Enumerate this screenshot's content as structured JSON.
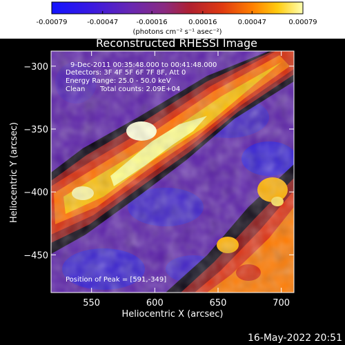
{
  "colorbar": {
    "ticks": [
      "-0.00079",
      "-0.00047",
      "-0.00016",
      "0.00016",
      "0.00047",
      "0.00079"
    ],
    "tick_values": [
      -0.00079,
      -0.00047,
      -0.00016,
      0.00016,
      0.00047,
      0.00079
    ],
    "unit_label": "(photons cm⁻² s⁻¹ asec⁻²)",
    "colors": [
      "#1414ff",
      "#5020c8",
      "#7a2ea0",
      "#a02040",
      "#e03010",
      "#ff7a00",
      "#ffcc00",
      "#ffff99"
    ]
  },
  "chart_data": {
    "type": "heatmap",
    "title": "Reconstructed RHESSI Image",
    "xlabel": "Heliocentric X (arcsec)",
    "ylabel": "Heliocentric Y (arcsec)",
    "xlim": [
      518,
      710
    ],
    "ylim": [
      -480,
      -288
    ],
    "x_ticks": [
      550,
      600,
      650,
      700
    ],
    "y_ticks": [
      -300,
      -350,
      -400,
      -450
    ],
    "x_tick_labels": [
      "550",
      "600",
      "650",
      "700"
    ],
    "y_tick_labels": [
      "−300",
      "−350",
      "−400",
      "−450"
    ],
    "bands": [
      {
        "name": "upper-left bright band",
        "approx_peak_value": 0.00079
      },
      {
        "name": "lower-right bright band",
        "approx_peak_value": 0.0006
      }
    ],
    "peak_position": [
      591,
      -349
    ]
  },
  "annotations": {
    "time_range": "9-Dec-2011 00:35:48.000 to 00:41:48.000",
    "detectors": "Detectors: 3F 4F 5F 6F 7F 8F, Att 0",
    "energy_range": "Energy Range: 25.0 - 50.0 keV",
    "clean": "Clean",
    "total_counts": "Total counts: 2.09E+04",
    "peak": "Position of Peak = [591,-349]"
  },
  "timestamp": "16-May-2022 20:51"
}
